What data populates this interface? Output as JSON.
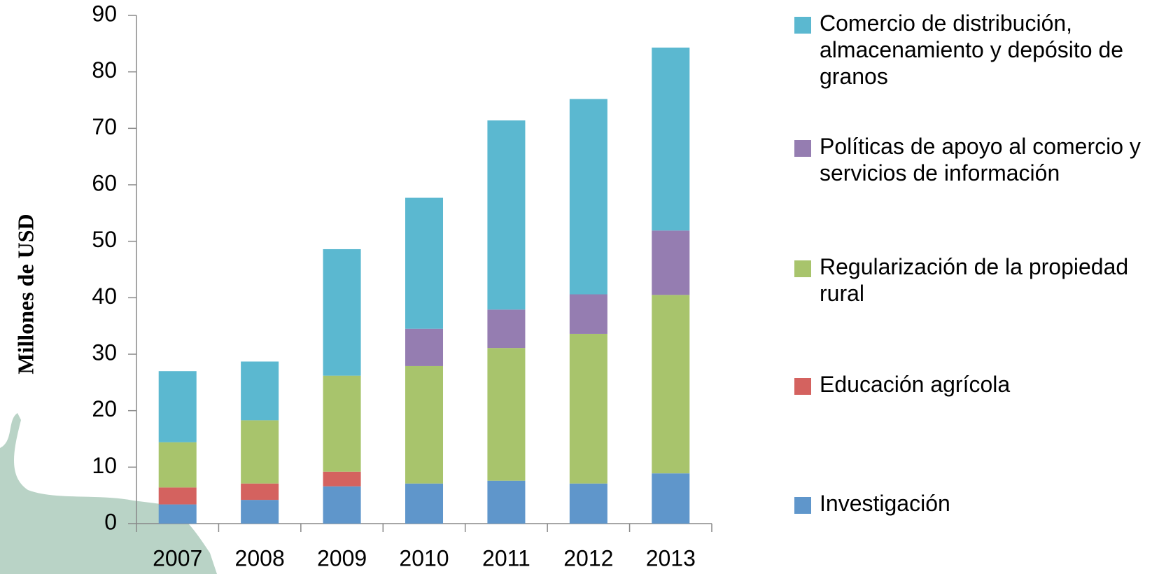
{
  "chart_data": {
    "type": "stacked_bar",
    "y_label": "Millones de USD",
    "categories": [
      "2007",
      "2008",
      "2009",
      "2010",
      "2011",
      "2012",
      "2013"
    ],
    "series": [
      {
        "name": "Investigación",
        "color": "#5f96cb",
        "values": [
          3.4,
          4.2,
          6.6,
          7.1,
          7.6,
          7.1,
          8.9
        ]
      },
      {
        "name": "Educación agrícola",
        "color": "#d4625f",
        "values": [
          3.0,
          2.9,
          2.6,
          0,
          0,
          0,
          0
        ]
      },
      {
        "name": "Regularización de la propiedad rural",
        "color": "#a8c46c",
        "values": [
          8.0,
          11.2,
          17.0,
          20.8,
          23.5,
          26.5,
          31.6
        ]
      },
      {
        "name": "Políticas de apoyo al comercio y servicios de información",
        "color": "#957db1",
        "values": [
          0,
          0,
          0,
          6.6,
          6.8,
          7.0,
          11.4
        ]
      },
      {
        "name": "Comercio de distribución, almacenamiento y depósito de granos",
        "color": "#5bb8d0",
        "values": [
          12.6,
          10.4,
          22.4,
          23.2,
          33.5,
          34.6,
          32.4
        ]
      }
    ],
    "ylim": [
      0,
      90
    ],
    "yticks": [
      0,
      10,
      20,
      30,
      40,
      50,
      60,
      70,
      80,
      90
    ]
  }
}
